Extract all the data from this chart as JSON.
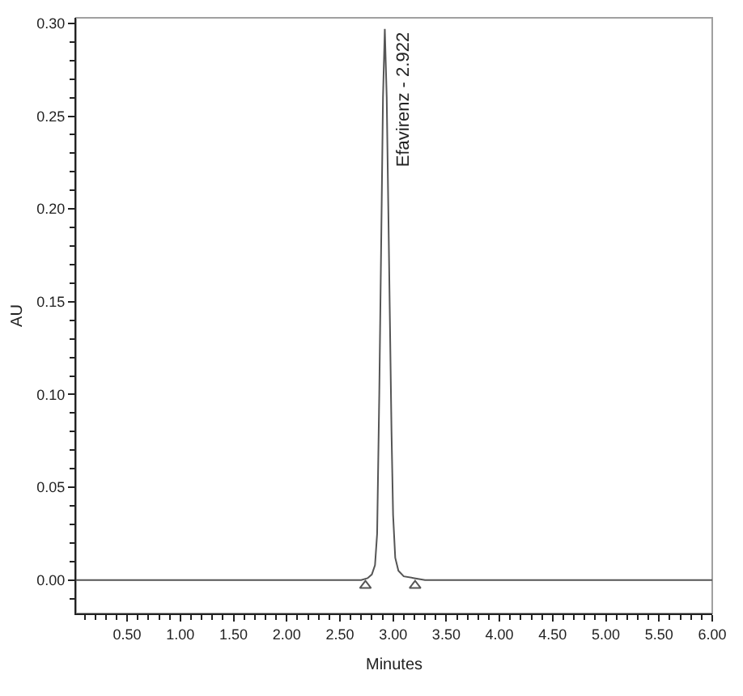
{
  "chart_data": {
    "type": "line",
    "xlabel": "Minutes",
    "ylabel": "AU",
    "annotations": [
      {
        "text": "Efavirenz - 2.922",
        "x": 2.922,
        "y": 0.297
      }
    ],
    "series": [
      {
        "color": "#555555",
        "marker": "none",
        "x": [
          0.02,
          2.7,
          2.76,
          2.8,
          2.83,
          2.85,
          2.87,
          2.89,
          2.905,
          2.922,
          2.94,
          2.955,
          2.97,
          2.985,
          3.0,
          3.02,
          3.05,
          3.1,
          3.2,
          3.3,
          6.0
        ],
        "values": [
          0,
          0,
          0.001,
          0.003,
          0.008,
          0.025,
          0.1,
          0.19,
          0.26,
          0.297,
          0.26,
          0.2,
          0.14,
          0.08,
          0.035,
          0.012,
          0.005,
          0.002,
          0.001,
          0,
          0
        ]
      },
      {
        "type": "scatter",
        "color": "#555555",
        "marker": "triangle",
        "x": [
          2.74,
          3.207
        ],
        "values": [
          -0.003,
          -0.003
        ]
      }
    ],
    "xlim": [
      0.02,
      6.0
    ],
    "ylim": [
      -0.018,
      0.303
    ],
    "xticks": [
      {
        "value": 0.1,
        "label": null
      },
      {
        "value": 0.2,
        "label": null
      },
      {
        "value": 0.3,
        "label": null
      },
      {
        "value": 0.4,
        "label": null
      },
      {
        "value": 0.5,
        "label": "0.50"
      },
      {
        "value": 0.6,
        "label": null
      },
      {
        "value": 0.7,
        "label": null
      },
      {
        "value": 0.8,
        "label": null
      },
      {
        "value": 0.9,
        "label": null
      },
      {
        "value": 1.0,
        "label": "1.00"
      },
      {
        "value": 1.1,
        "label": null
      },
      {
        "value": 1.2,
        "label": null
      },
      {
        "value": 1.3,
        "label": null
      },
      {
        "value": 1.4,
        "label": null
      },
      {
        "value": 1.5,
        "label": "1.50"
      },
      {
        "value": 1.6,
        "label": null
      },
      {
        "value": 1.7,
        "label": null
      },
      {
        "value": 1.8,
        "label": null
      },
      {
        "value": 1.9,
        "label": null
      },
      {
        "value": 2.0,
        "label": "2.00"
      },
      {
        "value": 2.1,
        "label": null
      },
      {
        "value": 2.2,
        "label": null
      },
      {
        "value": 2.3,
        "label": null
      },
      {
        "value": 2.4,
        "label": null
      },
      {
        "value": 2.5,
        "label": "2.50"
      },
      {
        "value": 2.6,
        "label": null
      },
      {
        "value": 2.7,
        "label": null
      },
      {
        "value": 2.8,
        "label": null
      },
      {
        "value": 2.9,
        "label": null
      },
      {
        "value": 3.0,
        "label": "3.00"
      },
      {
        "value": 3.1,
        "label": null
      },
      {
        "value": 3.2,
        "label": null
      },
      {
        "value": 3.3,
        "label": null
      },
      {
        "value": 3.4,
        "label": null
      },
      {
        "value": 3.5,
        "label": "3.50"
      },
      {
        "value": 3.6,
        "label": null
      },
      {
        "value": 3.7,
        "label": null
      },
      {
        "value": 3.8,
        "label": null
      },
      {
        "value": 3.9,
        "label": null
      },
      {
        "value": 4.0,
        "label": "4.00"
      },
      {
        "value": 4.1,
        "label": null
      },
      {
        "value": 4.2,
        "label": null
      },
      {
        "value": 4.3,
        "label": null
      },
      {
        "value": 4.4,
        "label": null
      },
      {
        "value": 4.5,
        "label": "4.50"
      },
      {
        "value": 4.6,
        "label": null
      },
      {
        "value": 4.7,
        "label": null
      },
      {
        "value": 4.8,
        "label": null
      },
      {
        "value": 4.9,
        "label": null
      },
      {
        "value": 5.0,
        "label": "5.00"
      },
      {
        "value": 5.1,
        "label": null
      },
      {
        "value": 5.2,
        "label": null
      },
      {
        "value": 5.3,
        "label": null
      },
      {
        "value": 5.4,
        "label": null
      },
      {
        "value": 5.5,
        "label": "5.50"
      },
      {
        "value": 5.6,
        "label": null
      },
      {
        "value": 5.7,
        "label": null
      },
      {
        "value": 5.8,
        "label": null
      },
      {
        "value": 5.9,
        "label": null
      },
      {
        "value": 6.0,
        "label": "6.00"
      }
    ],
    "yticks": [
      {
        "value": -0.01,
        "label": null
      },
      {
        "value": 0.0,
        "label": "0.00"
      },
      {
        "value": 0.01,
        "label": null
      },
      {
        "value": 0.02,
        "label": null
      },
      {
        "value": 0.03,
        "label": null
      },
      {
        "value": 0.04,
        "label": null
      },
      {
        "value": 0.05,
        "label": "0.05"
      },
      {
        "value": 0.06,
        "label": null
      },
      {
        "value": 0.07,
        "label": null
      },
      {
        "value": 0.08,
        "label": null
      },
      {
        "value": 0.09,
        "label": null
      },
      {
        "value": 0.1,
        "label": "0.10"
      },
      {
        "value": 0.11,
        "label": null
      },
      {
        "value": 0.12,
        "label": null
      },
      {
        "value": 0.13,
        "label": null
      },
      {
        "value": 0.14,
        "label": null
      },
      {
        "value": 0.15,
        "label": "0.15"
      },
      {
        "value": 0.16,
        "label": null
      },
      {
        "value": 0.17,
        "label": null
      },
      {
        "value": 0.18,
        "label": null
      },
      {
        "value": 0.19,
        "label": null
      },
      {
        "value": 0.2,
        "label": "0.20"
      },
      {
        "value": 0.21,
        "label": null
      },
      {
        "value": 0.22,
        "label": null
      },
      {
        "value": 0.23,
        "label": null
      },
      {
        "value": 0.24,
        "label": null
      },
      {
        "value": 0.25,
        "label": "0.25"
      },
      {
        "value": 0.26,
        "label": null
      },
      {
        "value": 0.27,
        "label": null
      },
      {
        "value": 0.28,
        "label": null
      },
      {
        "value": 0.29,
        "label": null
      },
      {
        "value": 0.3,
        "label": "0.30"
      }
    ]
  }
}
